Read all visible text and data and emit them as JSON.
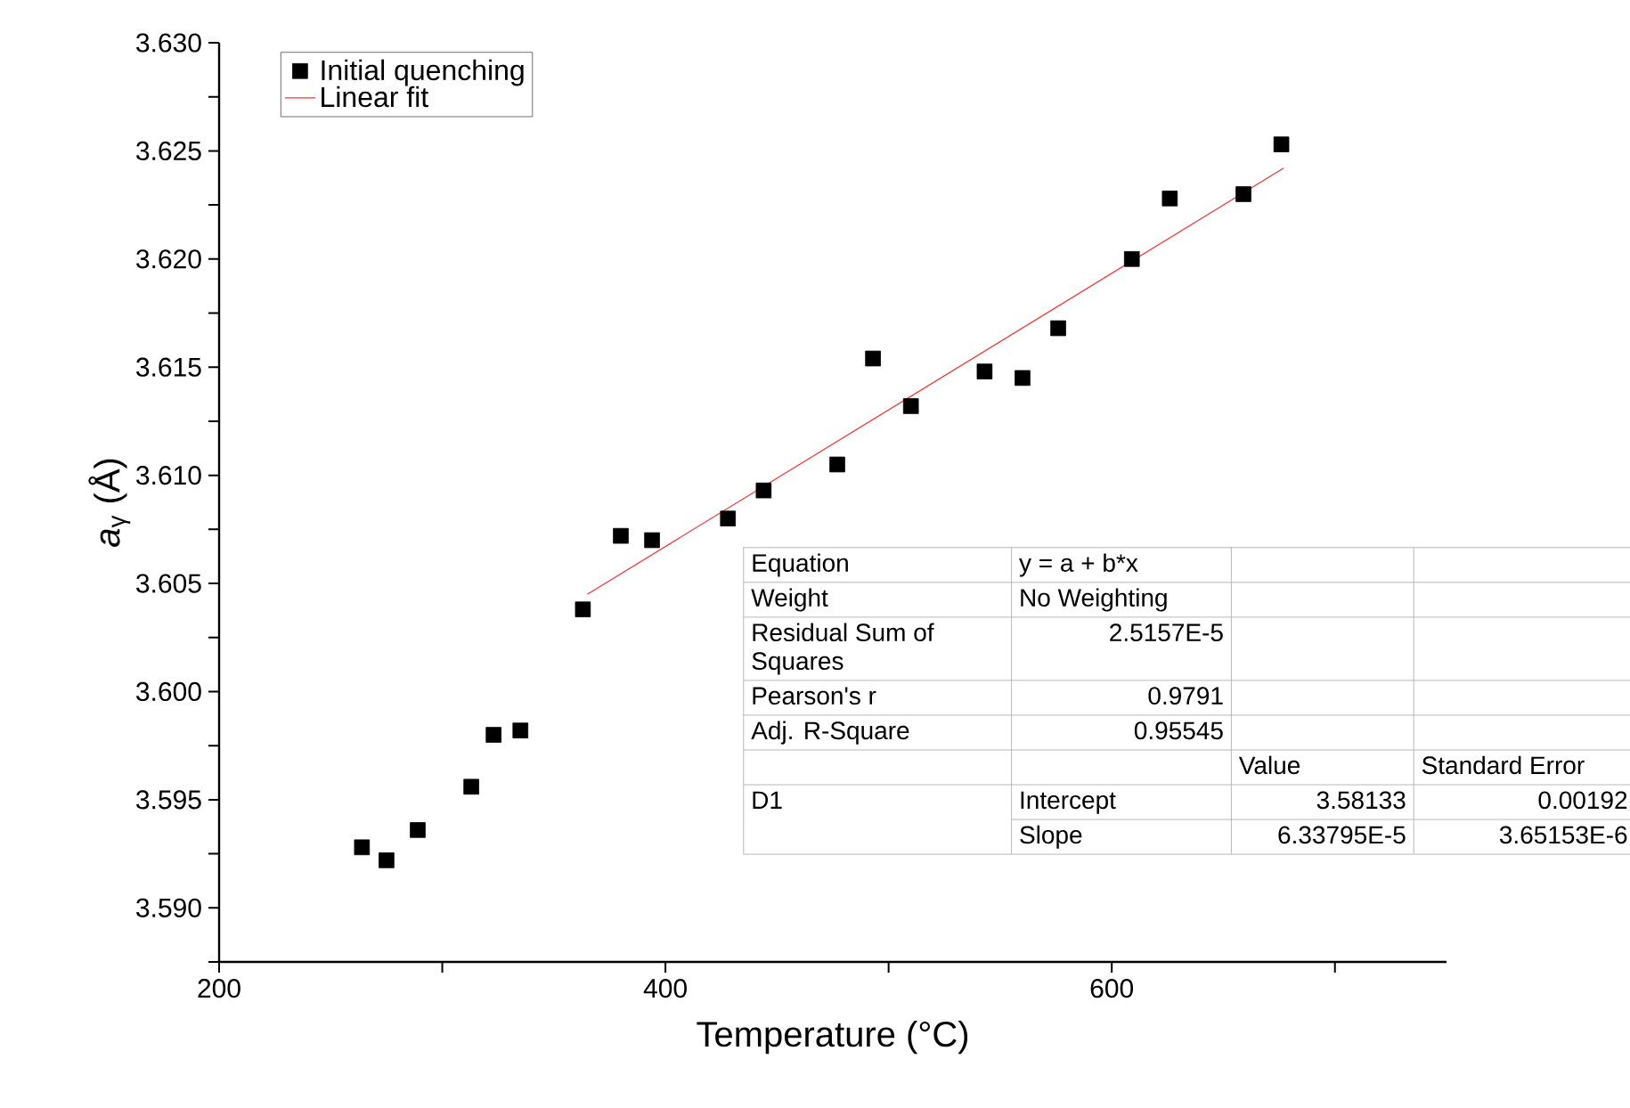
{
  "chart_data": {
    "type": "scatter",
    "xlabel": "Temperature (°C)",
    "ylabel": "*a*$_{γ}$ (Å)",
    "xlim": [
      200,
      750
    ],
    "ylim": [
      3.5875,
      3.63
    ],
    "xticks": [
      200,
      {
        "value": 300,
        "label": null
      },
      400,
      {
        "value": 500,
        "label": null
      },
      600,
      {
        "value": 700,
        "label": null
      }
    ],
    "yticks": [
      {
        "value": 3.5875,
        "label": null
      },
      {
        "value": 3.59,
        "label": "3.590"
      },
      {
        "value": 3.5925,
        "label": null
      },
      {
        "value": 3.595,
        "label": "3.595"
      },
      {
        "value": 3.5975,
        "label": null
      },
      {
        "value": 3.6,
        "label": "3.600"
      },
      {
        "value": 3.6025,
        "label": null
      },
      {
        "value": 3.605,
        "label": "3.605"
      },
      {
        "value": 3.6075,
        "label": null
      },
      {
        "value": 3.61,
        "label": "3.610"
      },
      {
        "value": 3.6125,
        "label": null
      },
      {
        "value": 3.615,
        "label": "3.615"
      },
      {
        "value": 3.6175,
        "label": null
      },
      {
        "value": 3.62,
        "label": "3.620"
      },
      {
        "value": 3.6225,
        "label": null
      },
      {
        "value": 3.625,
        "label": "3.625"
      },
      {
        "value": 3.6275,
        "label": null
      },
      {
        "value": 3.63,
        "label": "3.630"
      }
    ],
    "grid": false,
    "legend": "top left",
    "series": [
      {
        "name": "Initial quenching",
        "marker": "square",
        "color": "#000000",
        "x": [
          264,
          275,
          289,
          313,
          323,
          335,
          363,
          380,
          394,
          428,
          444,
          477,
          493,
          510,
          543,
          560,
          576,
          609,
          626,
          659,
          676
        ],
        "values": [
          3.5928,
          3.5922,
          3.5936,
          3.5956,
          3.598,
          3.5982,
          3.6038,
          3.6072,
          3.607,
          3.608,
          3.6093,
          3.6105,
          3.6154,
          3.6132,
          3.6148,
          3.6145,
          3.6168,
          3.62,
          3.6228,
          3.623,
          3.6253
        ]
      },
      {
        "name": "Linear fit",
        "type": "line",
        "marker": "none",
        "line_style": "solid",
        "color": "#ff3030",
        "x": [
          365,
          677
        ],
        "values": [
          3.6045,
          3.6242
        ]
      }
    ],
    "annotations": [
      "Equation",
      "y = a + b*x",
      "Weight",
      "No Weighting",
      "Residual Sum of Squares",
      "2.5157E-5",
      "Pearson's r",
      "0.9791",
      "Adj. R-Square",
      "0.95545",
      "Value",
      "Standard Error",
      "D1",
      "Intercept",
      "3.58133",
      "0.00192",
      "Slope",
      "6.33795E-5",
      "3.65153E-6"
    ]
  }
}
